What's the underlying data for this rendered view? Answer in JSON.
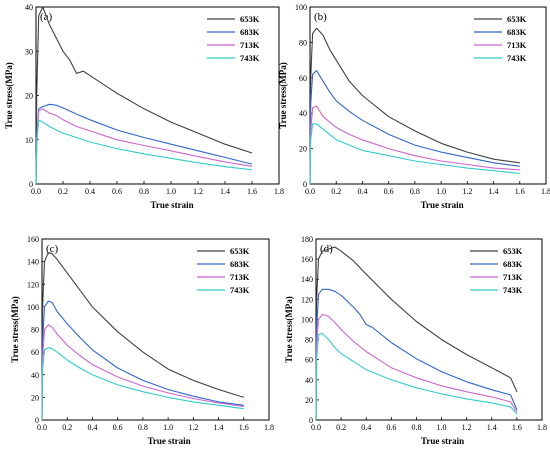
{
  "chart_data": [
    {
      "type": "line",
      "panel": "(a)",
      "xlabel": "True strain",
      "ylabel": "True stress(MPa)",
      "xlim": [
        0,
        1.8
      ],
      "ylim": [
        0,
        40
      ],
      "xticks": [
        "0.0",
        "0.2",
        "0.4",
        "0.6",
        "0.8",
        "1.0",
        "1.2",
        "1.4",
        "1.6",
        "1.8"
      ],
      "yticks": [
        "0",
        "10",
        "20",
        "30",
        "40"
      ],
      "legend": "top-right",
      "series": [
        {
          "name": "653K",
          "color": "#404040",
          "x": [
            0,
            0.005,
            0.02,
            0.05,
            0.1,
            0.15,
            0.2,
            0.25,
            0.3,
            0.35,
            0.4,
            0.5,
            0.6,
            0.8,
            1.0,
            1.2,
            1.4,
            1.6
          ],
          "y": [
            0,
            20,
            38,
            40,
            36,
            33,
            30,
            28,
            25,
            25.5,
            24.5,
            22.5,
            20.5,
            17,
            14,
            11.5,
            9,
            7
          ]
        },
        {
          "name": "683K",
          "color": "#3366cc",
          "x": [
            0,
            0.005,
            0.02,
            0.05,
            0.1,
            0.15,
            0.2,
            0.3,
            0.4,
            0.6,
            0.8,
            1.0,
            1.2,
            1.4,
            1.6
          ],
          "y": [
            0,
            10,
            17,
            17.5,
            18,
            17.8,
            17.2,
            15.8,
            14.5,
            12.2,
            10.5,
            9,
            7.5,
            6,
            4.5
          ]
        },
        {
          "name": "713K",
          "color": "#cc66cc",
          "x": [
            0,
            0.005,
            0.02,
            0.05,
            0.1,
            0.15,
            0.2,
            0.3,
            0.4,
            0.6,
            0.8,
            1.0,
            1.2,
            1.4,
            1.6
          ],
          "y": [
            0,
            10,
            16.5,
            17,
            16,
            15.5,
            14.5,
            13,
            12,
            10,
            8.7,
            7.5,
            6.2,
            5,
            4
          ]
        },
        {
          "name": "743K",
          "color": "#33cccc",
          "x": [
            0,
            0.005,
            0.02,
            0.05,
            0.1,
            0.15,
            0.2,
            0.3,
            0.4,
            0.6,
            0.8,
            1.0,
            1.2,
            1.4,
            1.6
          ],
          "y": [
            0,
            9,
            14.5,
            14,
            13,
            12.2,
            11.5,
            10.5,
            9.5,
            8,
            6.8,
            5.8,
            4.8,
            3.9,
            3.2
          ]
        }
      ]
    },
    {
      "type": "line",
      "panel": "(b)",
      "xlabel": "True strain",
      "ylabel": "True stress(MPa)",
      "xlim": [
        0,
        1.8
      ],
      "ylim": [
        0,
        100
      ],
      "xticks": [
        "0.0",
        "0.2",
        "0.4",
        "0.6",
        "0.8",
        "1.0",
        "1.2",
        "1.4",
        "1.6",
        "1.8"
      ],
      "yticks": [
        "0",
        "20",
        "40",
        "60",
        "80",
        "100"
      ],
      "legend": "top-right",
      "series": [
        {
          "name": "653K",
          "color": "#404040",
          "x": [
            0,
            0.005,
            0.02,
            0.05,
            0.1,
            0.15,
            0.2,
            0.3,
            0.4,
            0.6,
            0.8,
            1.0,
            1.2,
            1.4,
            1.6
          ],
          "y": [
            0,
            60,
            85,
            88,
            84,
            76,
            70,
            58,
            50,
            38,
            30,
            23,
            18,
            14,
            12
          ]
        },
        {
          "name": "683K",
          "color": "#3366cc",
          "x": [
            0,
            0.005,
            0.02,
            0.05,
            0.1,
            0.15,
            0.2,
            0.3,
            0.4,
            0.6,
            0.8,
            1.0,
            1.2,
            1.4,
            1.6
          ],
          "y": [
            0,
            45,
            62,
            64,
            58,
            52,
            47,
            41,
            36,
            28,
            22,
            18,
            15,
            12,
            10
          ]
        },
        {
          "name": "713K",
          "color": "#cc66cc",
          "x": [
            0,
            0.005,
            0.02,
            0.05,
            0.1,
            0.15,
            0.2,
            0.3,
            0.4,
            0.6,
            0.8,
            1.0,
            1.2,
            1.4,
            1.6
          ],
          "y": [
            0,
            30,
            43,
            44,
            38,
            35,
            32,
            28,
            25,
            20,
            16,
            13,
            11,
            9,
            8
          ]
        },
        {
          "name": "743K",
          "color": "#33cccc",
          "x": [
            0,
            0.005,
            0.02,
            0.05,
            0.1,
            0.15,
            0.2,
            0.3,
            0.4,
            0.6,
            0.8,
            1.0,
            1.2,
            1.4,
            1.6
          ],
          "y": [
            0,
            25,
            34,
            34,
            31,
            28,
            25,
            22,
            19,
            16,
            13,
            11,
            9,
            7.5,
            6
          ]
        }
      ]
    },
    {
      "type": "line",
      "panel": "(c)",
      "xlabel": "True strain",
      "ylabel": "True stress(MPa)",
      "xlim": [
        0,
        1.8
      ],
      "ylim": [
        0,
        160
      ],
      "xticks": [
        "0.0",
        "0.2",
        "0.4",
        "0.6",
        "0.8",
        "1.0",
        "1.2",
        "1.4",
        "1.6",
        "1.8"
      ],
      "yticks": [
        "0",
        "20",
        "40",
        "60",
        "80",
        "100",
        "120",
        "140",
        "160"
      ],
      "legend": "top-right",
      "series": [
        {
          "name": "653K",
          "color": "#404040",
          "x": [
            0,
            0.005,
            0.02,
            0.05,
            0.08,
            0.12,
            0.2,
            0.3,
            0.4,
            0.6,
            0.8,
            1.0,
            1.2,
            1.4,
            1.6
          ],
          "y": [
            0,
            100,
            140,
            148,
            147,
            142,
            130,
            115,
            100,
            78,
            60,
            45,
            35,
            27,
            20
          ]
        },
        {
          "name": "683K",
          "color": "#3366cc",
          "x": [
            0,
            0.005,
            0.02,
            0.05,
            0.08,
            0.12,
            0.2,
            0.3,
            0.4,
            0.6,
            0.8,
            1.0,
            1.2,
            1.4,
            1.6
          ],
          "y": [
            0,
            70,
            100,
            105,
            104,
            96,
            85,
            73,
            62,
            46,
            35,
            27,
            21,
            16,
            13
          ]
        },
        {
          "name": "713K",
          "color": "#cc66cc",
          "x": [
            0,
            0.005,
            0.02,
            0.05,
            0.08,
            0.12,
            0.2,
            0.3,
            0.4,
            0.6,
            0.8,
            1.0,
            1.2,
            1.4,
            1.6
          ],
          "y": [
            0,
            55,
            80,
            84,
            82,
            76,
            66,
            57,
            49,
            38,
            30,
            24,
            19,
            15,
            12
          ]
        },
        {
          "name": "743K",
          "color": "#33cccc",
          "x": [
            0,
            0.005,
            0.02,
            0.05,
            0.08,
            0.12,
            0.2,
            0.3,
            0.4,
            0.6,
            0.8,
            1.0,
            1.2,
            1.4,
            1.6
          ],
          "y": [
            0,
            45,
            62,
            64,
            63,
            60,
            53,
            46,
            40,
            31,
            25,
            20,
            16,
            13,
            10
          ]
        }
      ]
    },
    {
      "type": "line",
      "panel": "(d)",
      "xlabel": "True strain",
      "ylabel": "True stress(MPa)",
      "xlim": [
        0,
        1.8
      ],
      "ylim": [
        0,
        180
      ],
      "xticks": [
        "0.0",
        "0.2",
        "0.4",
        "0.6",
        "0.8",
        "1.0",
        "1.2",
        "1.4",
        "1.6",
        "1.8"
      ],
      "yticks": [
        "0",
        "20",
        "40",
        "60",
        "80",
        "100",
        "120",
        "140",
        "160",
        "180"
      ],
      "legend": "top-right",
      "series": [
        {
          "name": "653K",
          "color": "#404040",
          "x": [
            0,
            0.005,
            0.02,
            0.05,
            0.1,
            0.15,
            0.2,
            0.3,
            0.4,
            0.6,
            0.8,
            1.0,
            1.2,
            1.4,
            1.55,
            1.6
          ],
          "y": [
            0,
            120,
            160,
            168,
            170,
            172,
            168,
            158,
            145,
            120,
            98,
            80,
            65,
            52,
            42,
            28
          ]
        },
        {
          "name": "683K",
          "color": "#3366cc",
          "x": [
            0,
            0.005,
            0.02,
            0.05,
            0.1,
            0.15,
            0.2,
            0.3,
            0.35,
            0.4,
            0.45,
            0.6,
            0.8,
            1.0,
            1.2,
            1.4,
            1.55,
            1.6
          ],
          "y": [
            0,
            90,
            125,
            130,
            130,
            128,
            124,
            112,
            105,
            95,
            92,
            77,
            61,
            48,
            38,
            30,
            25,
            10
          ]
        },
        {
          "name": "713K",
          "color": "#cc66cc",
          "x": [
            0,
            0.005,
            0.02,
            0.05,
            0.1,
            0.15,
            0.2,
            0.3,
            0.4,
            0.6,
            0.8,
            1.0,
            1.2,
            1.4,
            1.55,
            1.6
          ],
          "y": [
            0,
            75,
            100,
            105,
            103,
            97,
            90,
            78,
            68,
            52,
            42,
            34,
            28,
            23,
            18,
            8
          ]
        },
        {
          "name": "743K",
          "color": "#33cccc",
          "x": [
            0,
            0.005,
            0.02,
            0.05,
            0.1,
            0.15,
            0.2,
            0.3,
            0.4,
            0.6,
            0.8,
            1.0,
            1.2,
            1.4,
            1.55,
            1.6
          ],
          "y": [
            0,
            60,
            85,
            86,
            80,
            72,
            66,
            58,
            50,
            40,
            32,
            26,
            21,
            17,
            13,
            6
          ]
        }
      ]
    }
  ]
}
